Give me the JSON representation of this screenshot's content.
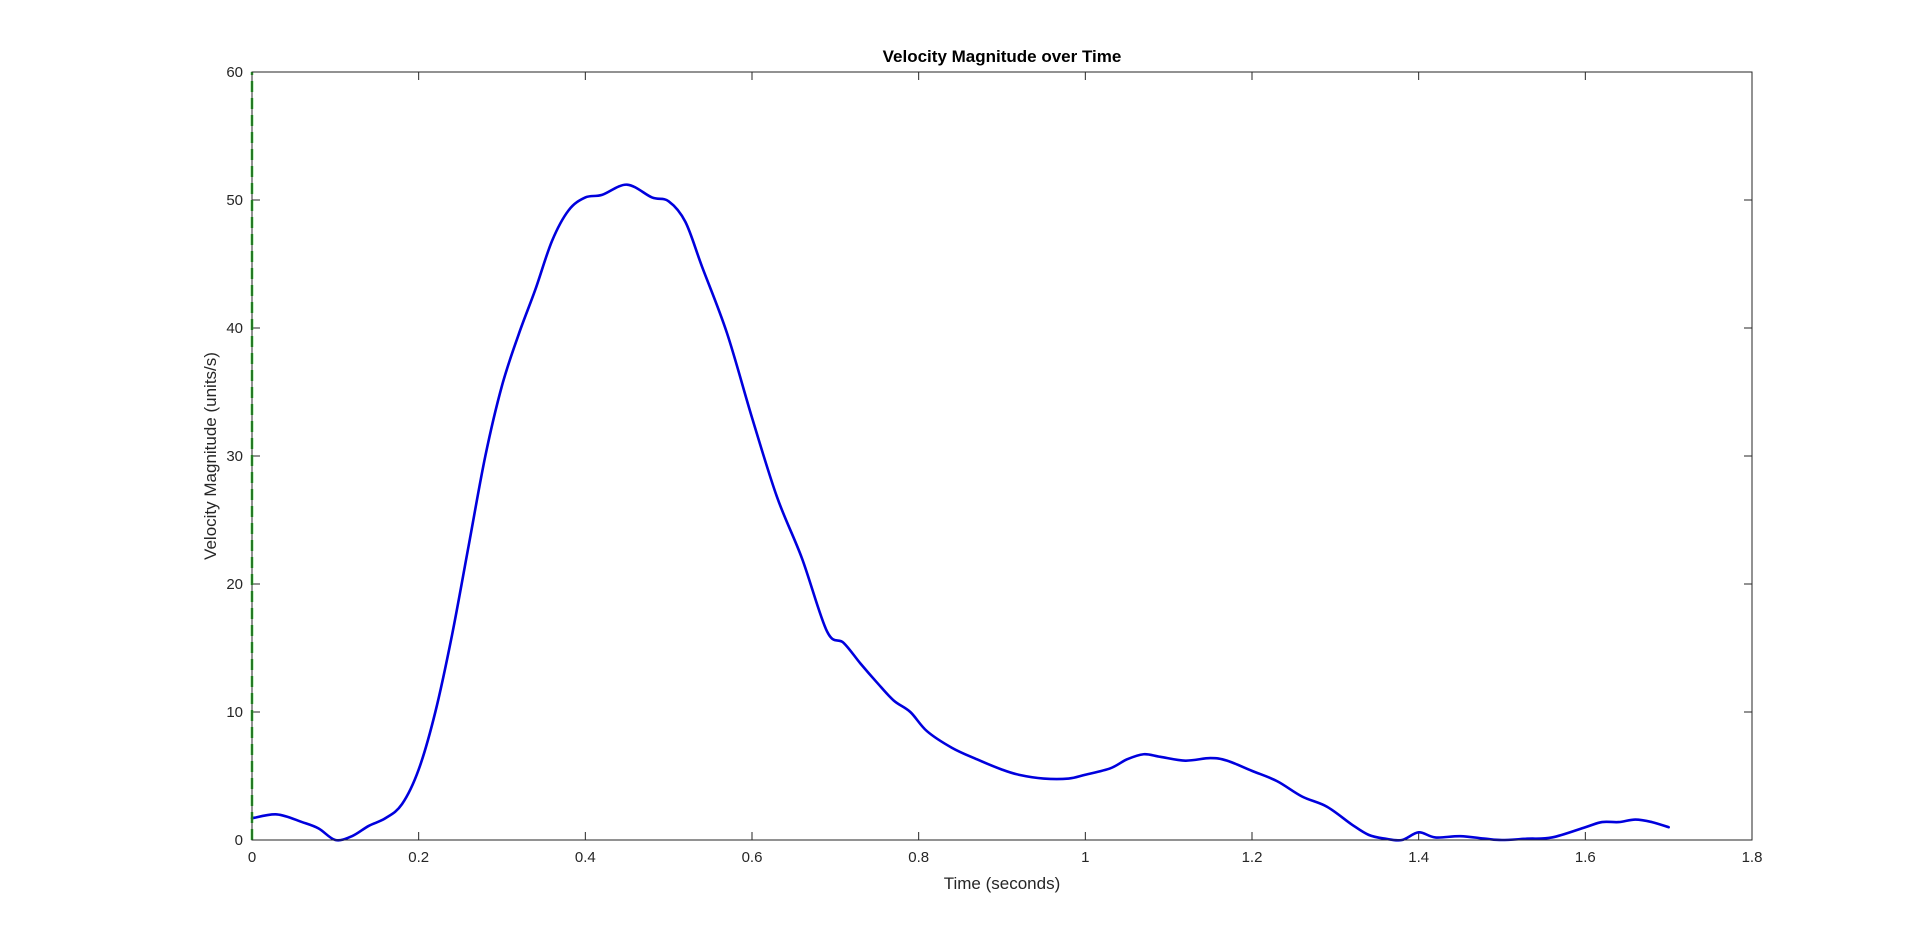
{
  "chart_data": {
    "type": "line",
    "title": "Velocity Magnitude over Time",
    "xlabel": "Time (seconds)",
    "ylabel": "Velocity Magnitude (units/s)",
    "xlim": [
      0,
      1.8
    ],
    "ylim": [
      0,
      60
    ],
    "xticks": [
      0,
      0.2,
      0.4,
      0.6,
      0.8,
      1,
      1.2,
      1.4,
      1.6,
      1.8
    ],
    "xtick_labels": [
      "0",
      "0.2",
      "0.4",
      "0.6",
      "0.8",
      "1",
      "1.2",
      "1.4",
      "1.6",
      "1.8"
    ],
    "yticks": [
      0,
      10,
      20,
      30,
      40,
      50,
      60
    ],
    "ytick_labels": [
      "0",
      "10",
      "20",
      "30",
      "40",
      "50",
      "60"
    ],
    "grid": false,
    "series": [
      {
        "color": "#0000dd",
        "style": "solid",
        "x": [
          0,
          0.03,
          0.06,
          0.08,
          0.1,
          0.12,
          0.14,
          0.16,
          0.18,
          0.2,
          0.22,
          0.24,
          0.26,
          0.28,
          0.3,
          0.32,
          0.34,
          0.36,
          0.38,
          0.4,
          0.42,
          0.45,
          0.48,
          0.5,
          0.52,
          0.54,
          0.57,
          0.6,
          0.63,
          0.66,
          0.69,
          0.71,
          0.73,
          0.75,
          0.77,
          0.79,
          0.81,
          0.84,
          0.87,
          0.9,
          0.92,
          0.95,
          0.98,
          1.0,
          1.03,
          1.05,
          1.07,
          1.09,
          1.12,
          1.15,
          1.17,
          1.2,
          1.23,
          1.26,
          1.29,
          1.32,
          1.34,
          1.36,
          1.38,
          1.4,
          1.42,
          1.45,
          1.48,
          1.5,
          1.53,
          1.56,
          1.6,
          1.62,
          1.64,
          1.66,
          1.68,
          1.7
        ],
        "y": [
          1.7,
          2.0,
          1.4,
          0.9,
          0.0,
          0.3,
          1.1,
          1.7,
          2.8,
          5.5,
          10.0,
          16.0,
          23.0,
          30.0,
          35.5,
          39.5,
          43.0,
          46.8,
          49.2,
          50.2,
          50.4,
          51.2,
          50.2,
          49.9,
          48.3,
          44.8,
          39.6,
          33.0,
          26.8,
          22.0,
          16.3,
          15.4,
          13.8,
          12.3,
          10.9,
          10.0,
          8.5,
          7.2,
          6.3,
          5.5,
          5.1,
          4.8,
          4.8,
          5.1,
          5.6,
          6.3,
          6.7,
          6.5,
          6.2,
          6.4,
          6.2,
          5.4,
          4.6,
          3.4,
          2.6,
          1.2,
          0.4,
          0.1,
          0.0,
          0.6,
          0.2,
          0.3,
          0.1,
          0.0,
          0.1,
          0.2,
          1.0,
          1.4,
          1.4,
          1.6,
          1.4,
          1.0
        ]
      },
      {
        "color": "#22cc22",
        "style": "dashed",
        "x": [
          0,
          0
        ],
        "y": [
          0,
          60
        ]
      }
    ]
  }
}
